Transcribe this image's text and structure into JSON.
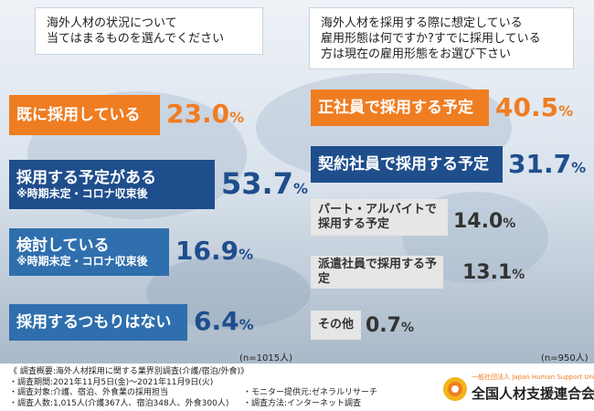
{
  "left_question": {
    "line1": "海外人材の状況について",
    "line2": "当てはまるものを選んでください"
  },
  "right_question": {
    "line1": "海外人材を採用する際に想定している",
    "line2": "雇用形態は何ですか?すでに採用している",
    "line3": "方は現在の雇用形態をお選び下さい"
  },
  "left_n": "(n=1015人)",
  "right_n": "(n=950人)",
  "colors": {
    "orange": "#ef7d22",
    "navy": "#1f4e8c",
    "blue": "#2f6fad",
    "gray": "#e6e6e6"
  },
  "chart_data": [
    {
      "type": "bar",
      "categories": [
        "既に採用している",
        "採用する予定がある",
        "検討している",
        "採用するつもりはない"
      ],
      "sublabels": [
        "",
        "※時期未定・コロナ収束後",
        "※時期未定・コロナ収束後",
        ""
      ],
      "values": [
        23.0,
        53.7,
        16.9,
        6.4
      ],
      "value_texts": [
        "23.0",
        "53.7",
        "16.9",
        "6.4"
      ],
      "unit": "%"
    },
    {
      "type": "bar",
      "categories": [
        "正社員で採用する予定",
        "契約社員で採用する予定",
        "パート・アルバイトで採用する予定",
        "派遣社員で採用する予定",
        "その他"
      ],
      "label_lines": [
        [
          "正社員で採用する予定"
        ],
        [
          "契約社員で採用する予定"
        ],
        [
          "パート・アルバイトで",
          "採用する予定"
        ],
        [
          "派遣社員で採用する予定"
        ],
        [
          "その他"
        ]
      ],
      "values": [
        40.5,
        31.7,
        14.0,
        13.1,
        0.7
      ],
      "value_texts": [
        "40.5",
        "31.7",
        "14.0",
        "13.1",
        "0.7"
      ],
      "unit": "%"
    }
  ],
  "footer": {
    "line1": "《 調査概要:海外人材採用に関する業界別調査(介護/宿泊/外食)》",
    "line2": "・調査期間:2021年11月5日(金)〜2021年11月9日(火)",
    "line3a": "・調査対象:介護、宿泊、外食業の採用担当",
    "line3b": "・モニター提供元:ゼネラルリサーチ",
    "line4a": "・調査人数:1,015人(介護367人、宿泊348人、外食300人)",
    "line4b": "・調査方法:インターネット調査"
  },
  "logo": {
    "sub": "一般社団法人 Japan Human Support Union",
    "main": "全国人材支援連合会",
    "icon": "jhsu-emblem-icon"
  }
}
